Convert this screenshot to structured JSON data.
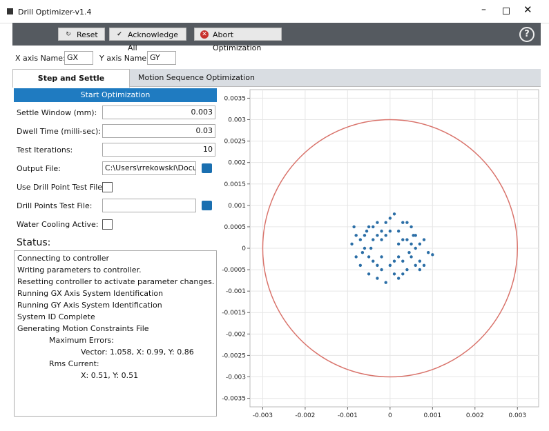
{
  "window": {
    "title": "Drill Optimizer-v1.4"
  },
  "toolbar": {
    "buttons": [
      "Reset",
      "Acknowledge All",
      "Abort Optimization"
    ]
  },
  "axis_names": {
    "x_label": "X axis Name:",
    "x_value": "GX",
    "y_label": "Y axis Name:",
    "y_value": "GY"
  },
  "tabs": [
    "Step and Settle Optimization",
    "Motion Sequence Optimization"
  ],
  "form": {
    "start_button": "Start Optimization",
    "fields": [
      {
        "label": "Settle Window (mm):",
        "value": "0.003"
      },
      {
        "label": "Dwell Time (milli-sec):",
        "value": "0.03"
      },
      {
        "label": "Test Iterations:",
        "value": "10"
      },
      {
        "label": "Output File:",
        "value": "C:\\Users\\rrekowski\\Docume"
      },
      {
        "label": "Use Drill Point Test File:"
      },
      {
        "label": "Drill Points Test File:"
      },
      {
        "label": "Water Cooling Active:"
      }
    ]
  },
  "status": {
    "title": "Status:",
    "lines": [
      "Connecting to controller",
      "Writing parameters to controller.",
      "Resetting controller to activate parameter changes.",
      "Running GX Axis System Identification",
      "Running GY Axis System Identification",
      "System ID Complete",
      "Generating Motion Constraints File",
      "Maximum Errors:",
      "Vector: 1.058, X: 0.99, Y: 0.86",
      "Rms Current:",
      "X: 0.51, Y: 0.51"
    ]
  },
  "chart_data": {
    "type": "scatter",
    "color": "#2b6ea6",
    "grid": true,
    "circle": {
      "radius": 0.003,
      "color": "#d9736b"
    },
    "xlim": [
      -0.0033,
      0.0035
    ],
    "ylim": [
      -0.0037,
      0.0037
    ],
    "xticks": [
      -0.003,
      -0.002,
      -0.001,
      0,
      0.001,
      0.002,
      0.003
    ],
    "yticks": [
      0.0035,
      0.003,
      0.0025,
      0.002,
      0.0015,
      0.001,
      0.0005,
      0,
      -0.0005,
      -0.001,
      -0.0015,
      -0.002,
      -0.0025,
      -0.003,
      -0.0035
    ],
    "x": [
      -0.0009,
      -0.0008,
      -0.00085,
      -0.0007,
      -0.0006,
      -0.00065,
      -0.0005,
      -0.0005,
      -0.0004,
      -0.0004,
      -0.0003,
      -0.0003,
      -0.0002,
      -0.0002,
      -0.0001,
      -0.0001,
      0,
      0,
      0.0001,
      0.0001,
      0.0002,
      0.0002,
      0.0003,
      0.0003,
      0.0004,
      0.0004,
      0.0005,
      0.0005,
      0.0006,
      0.0006,
      0.0007,
      0.0007,
      0.0008,
      0.0009,
      0.001,
      -0.0006,
      -0.0004,
      -0.0002,
      0.0002,
      0.0004,
      0.0006,
      -0.0007,
      -0.0005,
      -0.0003,
      0.0003,
      0.0005,
      0.0007,
      -0.0003,
      -0.0001,
      0.0001,
      0.0003,
      -0.0008,
      0.0008,
      -0.0002,
      0.0002,
      0,
      -0.00045,
      0.00045,
      -0.00055,
      0.00055
    ],
    "values": [
      0.0001,
      -0.0002,
      0.0005,
      -0.0004,
      0.0003,
      -0.0001,
      0.0005,
      -0.0006,
      0.0002,
      -0.0003,
      0.0006,
      -0.0007,
      0.0004,
      -0.0005,
      0.0006,
      -0.0008,
      0.0007,
      -0.0004,
      0.0008,
      -0.0006,
      0.0004,
      -0.0007,
      0.0006,
      -0.0003,
      0.0002,
      -0.0005,
      0.0005,
      -0.0002,
      0.0003,
      -0.0004,
      0.0001,
      -0.0003,
      0.0002,
      -0.0001,
      -0.00015,
      0,
      0.0005,
      0.0002,
      0.0001,
      0.0006,
      0,
      0.0002,
      -0.0002,
      0.0003,
      0.0002,
      0.0001,
      -0.0005,
      -0.0004,
      0.0003,
      -0.0003,
      -0.0006,
      0.0003,
      -0.0004,
      -0.0002,
      -0.0002,
      0.0004,
      0,
      -0.0001,
      0.0004,
      0.0003
    ]
  }
}
